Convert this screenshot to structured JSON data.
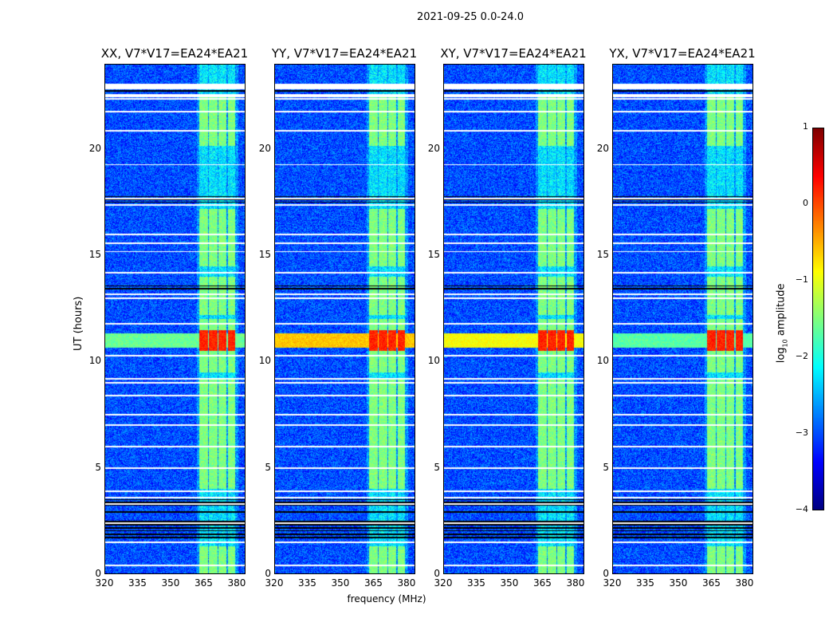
{
  "chart_data": {
    "type": "heatmap",
    "title": "2021-09-25 0.0-24.0",
    "xlabel": "frequency (MHz)",
    "ylabel": "UT (hours)",
    "xlim": [
      320,
      384
    ],
    "ylim": [
      0,
      24
    ],
    "xticks": [
      "320",
      "335",
      "350",
      "365",
      "380"
    ],
    "xtick_values": [
      320,
      335,
      350,
      365,
      380
    ],
    "yticks": [
      "0",
      "5",
      "10",
      "15",
      "20"
    ],
    "ytick_values": [
      0,
      5,
      10,
      15,
      20
    ],
    "panels": [
      {
        "title": "XX, V7*V17=EA24*EA21",
        "rfi_level": -1.6
      },
      {
        "title": "YY, V7*V17=EA24*EA21",
        "rfi_level": -0.6
      },
      {
        "title": "XY, V7*V17=EA24*EA21",
        "rfi_level": -0.9
      },
      {
        "title": "YX, V7*V17=EA24*EA21",
        "rfi_level": -1.7
      }
    ],
    "colorbar": {
      "label": "log",
      "label_sub": "10",
      "label_rest": " amplitude",
      "ticks": [
        "1",
        "0",
        "−1",
        "−2",
        "−3",
        "−4"
      ],
      "tick_values": [
        1,
        0,
        -1,
        -2,
        -3,
        -4
      ],
      "colormap": "jet",
      "range": [
        -4,
        1
      ]
    },
    "background_level": -3.0,
    "band_level": -1.5,
    "rfi_hours": [
      10.5,
      11.5
    ],
    "active_hours": [
      [
        0,
        1.3
      ],
      [
        4,
        9.2
      ],
      [
        9.5,
        12
      ],
      [
        12.2,
        14
      ],
      [
        14.5,
        17.2
      ],
      [
        20.2,
        22.6
      ]
    ],
    "flagged_white_hours": [
      23.0,
      22.6,
      22.5,
      22.4,
      21.8,
      20.9,
      19.3,
      17.7,
      17.4,
      16.0,
      15.6,
      15.2,
      14.2,
      13.2,
      13.0,
      11.8,
      10.3,
      9.2,
      9.0,
      8.4,
      7.5,
      7.0,
      6.0,
      5.0,
      3.9,
      3.6,
      3.3,
      2.4,
      1.5,
      0.4
    ],
    "flagged_black_hours": [
      [
        1.6,
        1.9
      ],
      [
        2.0,
        2.5
      ],
      [
        2.8,
        3.0
      ],
      [
        3.2,
        3.5
      ],
      [
        13.4,
        13.6
      ],
      [
        17.5,
        17.8
      ],
      [
        22.7,
        22.9
      ]
    ]
  }
}
